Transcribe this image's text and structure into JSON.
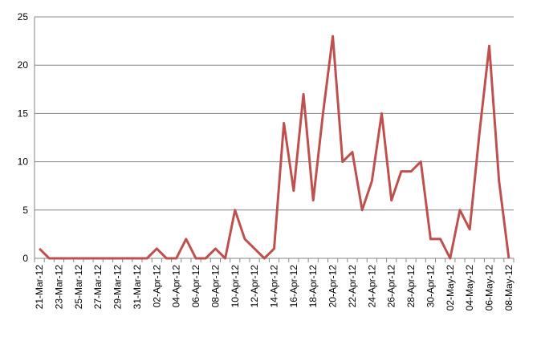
{
  "chart_data": {
    "type": "line",
    "categories": [
      "21-Mar-12",
      null,
      "23-Mar-12",
      null,
      "25-Mar-12",
      null,
      "27-Mar-12",
      null,
      "29-Mar-12",
      null,
      "31-Mar-12",
      null,
      "02-Apr-12",
      null,
      "04-Apr-12",
      null,
      "06-Apr-12",
      null,
      "08-Apr-12",
      null,
      "10-Apr-12",
      null,
      "12-Apr-12",
      null,
      "14-Apr-12",
      null,
      "16-Apr-12",
      null,
      "18-Apr-12",
      null,
      "20-Apr-12",
      null,
      "22-Apr-12",
      null,
      "24-Apr-12",
      null,
      "26-Apr-12",
      null,
      "28-Apr-12",
      null,
      "30-Apr-12",
      null,
      "02-May-12",
      null,
      "04-May-12",
      null,
      "06-May-12",
      null,
      "08-May-12"
    ],
    "values": [
      1,
      0,
      0,
      0,
      0,
      0,
      0,
      0,
      0,
      0,
      0,
      0,
      1,
      0,
      0,
      2,
      0,
      0,
      1,
      0,
      5,
      2,
      1,
      0,
      1,
      14,
      7,
      17,
      6,
      15,
      23,
      10,
      11,
      5,
      8,
      15,
      6,
      9,
      9,
      10,
      2,
      2,
      0,
      5,
      3,
      13,
      22,
      8,
      0
    ],
    "color": "#c0504d",
    "ylim": [
      0,
      25
    ],
    "yticks": [
      0,
      5,
      10,
      15,
      20,
      25
    ],
    "grid": true
  }
}
